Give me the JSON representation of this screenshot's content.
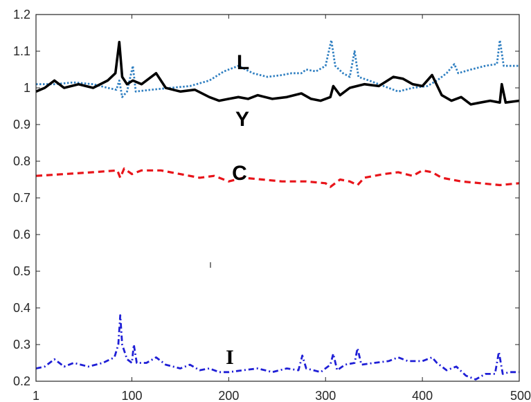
{
  "chart_data": {
    "type": "line",
    "title": "",
    "xlabel": "",
    "ylabel": "",
    "xlim": [
      1,
      500
    ],
    "ylim": [
      0.2,
      1.2
    ],
    "grid": false,
    "x_ticks": [
      "1",
      "100",
      "200",
      "300",
      "400",
      "500"
    ],
    "y_ticks": [
      "0.2",
      "0.3",
      "0.4",
      "0.5",
      "0.6",
      "0.7",
      "0.8",
      "0.9",
      "1",
      "1.1",
      "1.2"
    ],
    "series": [
      {
        "name": "L",
        "color": "#2f7fc1",
        "style": "dotted",
        "points": [
          [
            1,
            1.01
          ],
          [
            20,
            1.01
          ],
          [
            40,
            1.015
          ],
          [
            60,
            1.01
          ],
          [
            75,
            1.0
          ],
          [
            84,
            0.995
          ],
          [
            87,
            1.02
          ],
          [
            90,
            0.975
          ],
          [
            95,
            0.99
          ],
          [
            101,
            1.06
          ],
          [
            104,
            0.99
          ],
          [
            120,
            0.995
          ],
          [
            140,
            1.0
          ],
          [
            160,
            1.005
          ],
          [
            180,
            1.02
          ],
          [
            195,
            1.045
          ],
          [
            210,
            1.06
          ],
          [
            225,
            1.04
          ],
          [
            240,
            1.03
          ],
          [
            255,
            1.035
          ],
          [
            265,
            1.04
          ],
          [
            275,
            1.04
          ],
          [
            280,
            1.05
          ],
          [
            290,
            1.045
          ],
          [
            300,
            1.06
          ],
          [
            306,
            1.13
          ],
          [
            310,
            1.06
          ],
          [
            318,
            1.04
          ],
          [
            325,
            1.03
          ],
          [
            330,
            1.1
          ],
          [
            334,
            1.03
          ],
          [
            345,
            1.02
          ],
          [
            360,
            1.005
          ],
          [
            375,
            0.99
          ],
          [
            390,
            1.0
          ],
          [
            405,
            1.005
          ],
          [
            415,
            1.02
          ],
          [
            425,
            1.04
          ],
          [
            433,
            1.065
          ],
          [
            437,
            1.04
          ],
          [
            450,
            1.05
          ],
          [
            465,
            1.06
          ],
          [
            477,
            1.065
          ],
          [
            480,
            1.13
          ],
          [
            484,
            1.06
          ],
          [
            500,
            1.06
          ]
        ]
      },
      {
        "name": "Y",
        "color": "#000000",
        "style": "solid",
        "points": [
          [
            1,
            0.99
          ],
          [
            10,
            1.0
          ],
          [
            20,
            1.02
          ],
          [
            30,
            1.0
          ],
          [
            45,
            1.01
          ],
          [
            60,
            1.0
          ],
          [
            75,
            1.02
          ],
          [
            83,
            1.04
          ],
          [
            87,
            1.125
          ],
          [
            90,
            1.03
          ],
          [
            95,
            1.01
          ],
          [
            101,
            1.02
          ],
          [
            110,
            1.01
          ],
          [
            125,
            1.04
          ],
          [
            135,
            1.0
          ],
          [
            150,
            0.99
          ],
          [
            165,
            0.995
          ],
          [
            180,
            0.975
          ],
          [
            190,
            0.965
          ],
          [
            200,
            0.97
          ],
          [
            210,
            0.975
          ],
          [
            220,
            0.97
          ],
          [
            230,
            0.98
          ],
          [
            245,
            0.97
          ],
          [
            260,
            0.975
          ],
          [
            275,
            0.985
          ],
          [
            285,
            0.97
          ],
          [
            295,
            0.965
          ],
          [
            305,
            0.975
          ],
          [
            308,
            1.005
          ],
          [
            315,
            0.98
          ],
          [
            325,
            1.0
          ],
          [
            340,
            1.01
          ],
          [
            355,
            1.005
          ],
          [
            370,
            1.03
          ],
          [
            380,
            1.025
          ],
          [
            390,
            1.01
          ],
          [
            400,
            1.005
          ],
          [
            410,
            1.035
          ],
          [
            420,
            0.98
          ],
          [
            430,
            0.965
          ],
          [
            440,
            0.975
          ],
          [
            450,
            0.955
          ],
          [
            460,
            0.96
          ],
          [
            470,
            0.965
          ],
          [
            480,
            0.96
          ],
          [
            482,
            1.01
          ],
          [
            486,
            0.96
          ],
          [
            500,
            0.965
          ]
        ]
      },
      {
        "name": "C",
        "color": "#e8141a",
        "style": "dashed",
        "points": [
          [
            1,
            0.76
          ],
          [
            30,
            0.765
          ],
          [
            60,
            0.77
          ],
          [
            85,
            0.775
          ],
          [
            88,
            0.755
          ],
          [
            92,
            0.78
          ],
          [
            100,
            0.765
          ],
          [
            110,
            0.775
          ],
          [
            130,
            0.775
          ],
          [
            150,
            0.765
          ],
          [
            170,
            0.755
          ],
          [
            185,
            0.76
          ],
          [
            200,
            0.745
          ],
          [
            215,
            0.755
          ],
          [
            235,
            0.75
          ],
          [
            255,
            0.745
          ],
          [
            280,
            0.745
          ],
          [
            300,
            0.74
          ],
          [
            305,
            0.73
          ],
          [
            315,
            0.75
          ],
          [
            325,
            0.745
          ],
          [
            333,
            0.735
          ],
          [
            340,
            0.755
          ],
          [
            360,
            0.765
          ],
          [
            375,
            0.77
          ],
          [
            390,
            0.76
          ],
          [
            400,
            0.775
          ],
          [
            410,
            0.77
          ],
          [
            420,
            0.755
          ],
          [
            440,
            0.745
          ],
          [
            460,
            0.74
          ],
          [
            480,
            0.735
          ],
          [
            500,
            0.74
          ]
        ]
      },
      {
        "name": "I",
        "color": "#1f1fd6",
        "style": "dash-dot",
        "points": [
          [
            1,
            0.235
          ],
          [
            10,
            0.24
          ],
          [
            20,
            0.26
          ],
          [
            30,
            0.24
          ],
          [
            40,
            0.25
          ],
          [
            55,
            0.24
          ],
          [
            70,
            0.25
          ],
          [
            82,
            0.265
          ],
          [
            86,
            0.3
          ],
          [
            88,
            0.38
          ],
          [
            90,
            0.3
          ],
          [
            95,
            0.26
          ],
          [
            100,
            0.25
          ],
          [
            102,
            0.3
          ],
          [
            105,
            0.25
          ],
          [
            115,
            0.25
          ],
          [
            125,
            0.265
          ],
          [
            135,
            0.245
          ],
          [
            150,
            0.235
          ],
          [
            160,
            0.245
          ],
          [
            170,
            0.23
          ],
          [
            180,
            0.235
          ],
          [
            190,
            0.225
          ],
          [
            200,
            0.225
          ],
          [
            215,
            0.23
          ],
          [
            230,
            0.235
          ],
          [
            245,
            0.225
          ],
          [
            260,
            0.235
          ],
          [
            272,
            0.23
          ],
          [
            276,
            0.27
          ],
          [
            280,
            0.235
          ],
          [
            295,
            0.225
          ],
          [
            305,
            0.245
          ],
          [
            308,
            0.275
          ],
          [
            312,
            0.23
          ],
          [
            320,
            0.245
          ],
          [
            330,
            0.25
          ],
          [
            333,
            0.29
          ],
          [
            337,
            0.245
          ],
          [
            350,
            0.25
          ],
          [
            365,
            0.255
          ],
          [
            375,
            0.265
          ],
          [
            385,
            0.255
          ],
          [
            400,
            0.255
          ],
          [
            410,
            0.265
          ],
          [
            415,
            0.25
          ],
          [
            425,
            0.23
          ],
          [
            435,
            0.24
          ],
          [
            445,
            0.215
          ],
          [
            455,
            0.205
          ],
          [
            465,
            0.22
          ],
          [
            475,
            0.22
          ],
          [
            479,
            0.28
          ],
          [
            483,
            0.22
          ],
          [
            490,
            0.225
          ],
          [
            500,
            0.225
          ]
        ]
      }
    ]
  }
}
